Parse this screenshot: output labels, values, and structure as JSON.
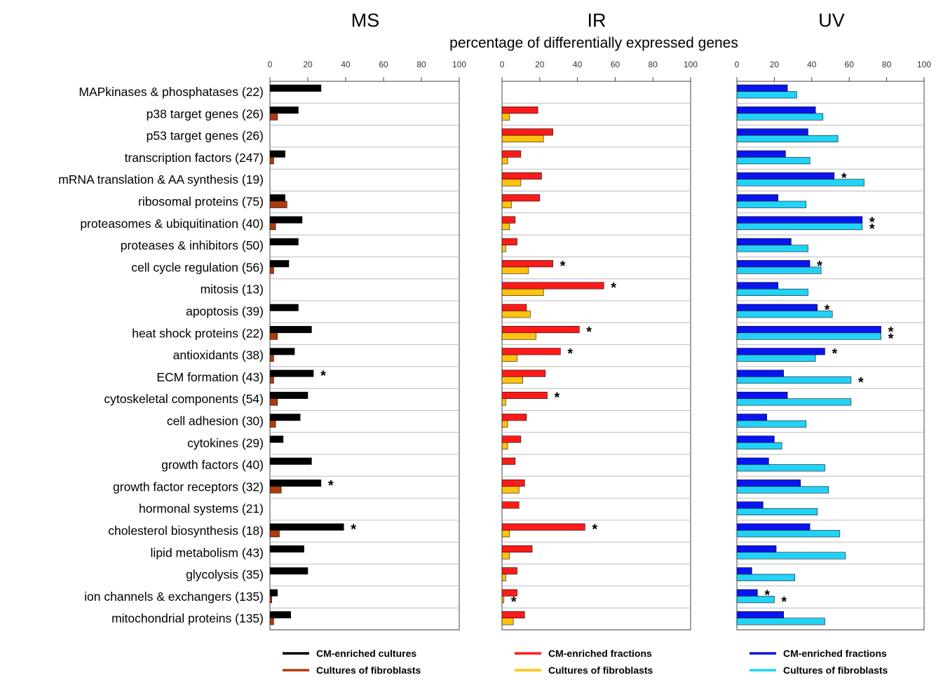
{
  "chart_data": {
    "type": "bar",
    "subtitle": "percentage of differentially expressed genes",
    "xlim": [
      0,
      100
    ],
    "ticks": [
      "0",
      "20",
      "40",
      "60",
      "80",
      "100"
    ],
    "categories": [
      "MAPkinases & phosphatases (22)",
      "p38 target genes (26)",
      "p53 target genes (26)",
      "transcription factors (247)",
      "mRNA translation & AA synthesis (19)",
      "ribosomal proteins (75)",
      "proteasomes & ubiquitination (40)",
      "proteases & inhibitors (50)",
      "cell cycle regulation (56)",
      "mitosis (13)",
      "apoptosis (39)",
      "heat shock proteins (22)",
      "antioxidants (38)",
      "ECM formation (43)",
      "cytoskeletal components (54)",
      "cell adhesion (30)",
      "cytokines (29)",
      "growth factors (40)",
      "growth factor receptors (32)",
      "hormonal systems (21)",
      "cholesterol biosynthesis (18)",
      "lipid metabolism (43)",
      "glycolysis (35)",
      "ion channels & exchangers (135)",
      "mitochondrial proteins (135)"
    ],
    "panels": [
      {
        "title": "MS",
        "series": [
          {
            "name": "CM-enriched cultures",
            "color": "#000000",
            "values": [
              27,
              15,
              0,
              8,
              0,
              8,
              17,
              15,
              10,
              0,
              15,
              22,
              13,
              23,
              20,
              16,
              7,
              22,
              27,
              0,
              39,
              18,
              20,
              4,
              11
            ],
            "stars": [
              13,
              18,
              20
            ]
          },
          {
            "name": "Cultures of fibroblasts",
            "color": "#b03a0a",
            "values": [
              0,
              4,
              0,
              2,
              0,
              9,
              3,
              0,
              2,
              0,
              0,
              4,
              2,
              2,
              4,
              3,
              0,
              0,
              6,
              0,
              5,
              0,
              0,
              1,
              2
            ],
            "stars": []
          }
        ]
      },
      {
        "title": "IR",
        "series": [
          {
            "name": "CM-enriched fractions",
            "color": "#ff1a1a",
            "values": [
              0,
              19,
              27,
              10,
              21,
              20,
              7,
              8,
              27,
              54,
              13,
              41,
              31,
              23,
              24,
              13,
              10,
              7,
              12,
              9,
              44,
              16,
              8,
              8,
              12
            ],
            "stars": [
              8,
              9,
              11,
              12,
              14,
              20
            ]
          },
          {
            "name": "Cultures of fibroblasts",
            "color": "#ffc20e",
            "values": [
              0,
              4,
              22,
              3,
              10,
              5,
              4,
              2,
              14,
              22,
              15,
              18,
              8,
              11,
              2,
              3,
              3,
              0,
              9,
              0,
              4,
              4,
              2,
              1,
              6
            ],
            "stars": [
              23
            ]
          }
        ]
      },
      {
        "title": "UV",
        "series": [
          {
            "name": "CM-enriched fractions",
            "color": "#0a14f0",
            "values": [
              27,
              42,
              38,
              26,
              52,
              22,
              67,
              29,
              39,
              22,
              43,
              77,
              47,
              25,
              27,
              16,
              20,
              17,
              34,
              14,
              39,
              21,
              8,
              11,
              25
            ],
            "stars": [
              4,
              6,
              8,
              10,
              11,
              12,
              23
            ]
          },
          {
            "name": "Cultures of fibroblasts",
            "color": "#21d3f7",
            "values": [
              32,
              46,
              54,
              39,
              68,
              37,
              67,
              38,
              45,
              38,
              51,
              77,
              42,
              61,
              61,
              37,
              24,
              47,
              49,
              43,
              55,
              58,
              31,
              20,
              47
            ],
            "stars": [
              6,
              11,
              13,
              23
            ]
          }
        ]
      }
    ]
  }
}
